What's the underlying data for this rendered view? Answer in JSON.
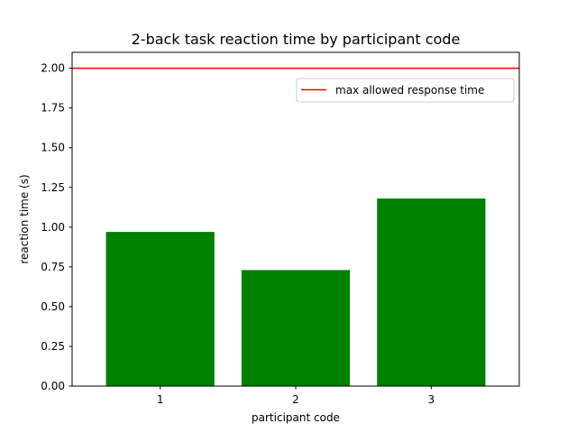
{
  "chart_data": {
    "type": "bar",
    "title": "2-back task reaction time by participant code",
    "xlabel": "participant code",
    "ylabel": "reaction time (s)",
    "categories": [
      "1",
      "2",
      "3"
    ],
    "values": [
      0.97,
      0.73,
      1.18
    ],
    "bar_color": "#008000",
    "ylim": [
      0,
      2.1
    ],
    "yticks": [
      "0.00",
      "0.25",
      "0.50",
      "0.75",
      "1.00",
      "1.25",
      "1.50",
      "1.75",
      "2.00"
    ],
    "grid": false,
    "reference_line": {
      "y": 2.0,
      "label": "max allowed response time",
      "color": "#ff0000"
    },
    "legend": {
      "position": "top-right",
      "entries": [
        "max allowed response time"
      ]
    }
  }
}
